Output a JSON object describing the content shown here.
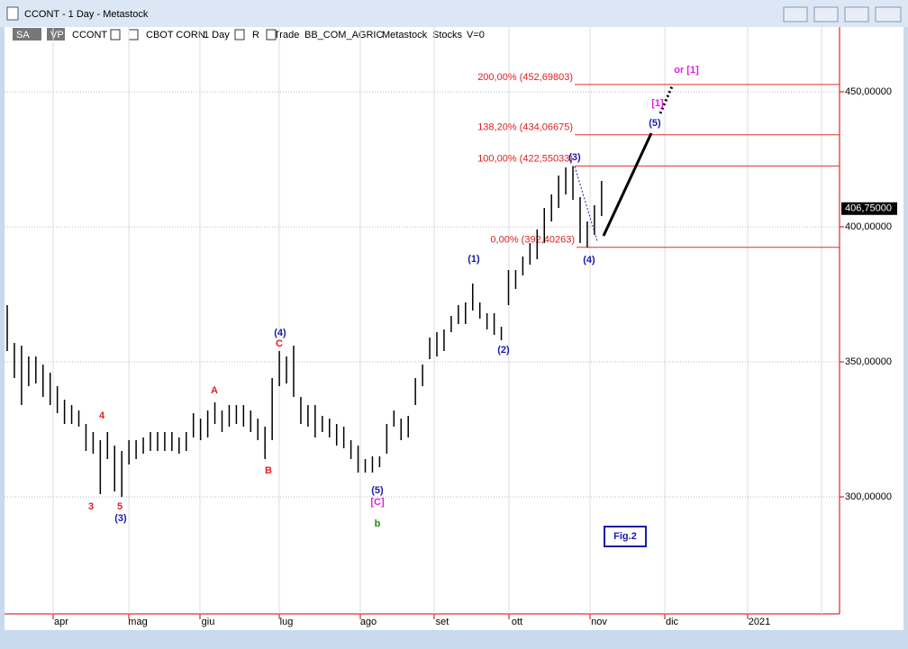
{
  "window": {
    "title": "CCONT - 1 Day - Metastock"
  },
  "toolbar": [
    "SA",
    "VP",
    "CCONT",
    "CBOT CORN",
    "1 Day",
    "R",
    "Trade",
    "BB_COM_AGRIC",
    "Metastock",
    "Stocks",
    "V=0"
  ],
  "chart_data": {
    "type": "hilo",
    "highs": [
      371,
      357,
      356,
      352,
      352,
      349,
      346,
      341,
      336,
      334,
      332,
      327,
      324,
      321,
      324,
      319,
      317,
      321,
      321,
      322,
      324,
      324,
      324,
      324,
      322,
      324,
      331,
      329,
      332,
      335,
      332,
      334,
      334,
      334,
      332,
      329,
      326,
      344,
      354,
      352,
      356,
      337,
      334,
      334,
      330,
      329,
      327,
      326,
      321,
      319,
      314,
      315,
      315,
      327,
      332,
      329,
      330,
      344,
      349,
      359,
      361,
      362,
      367,
      371,
      372,
      379,
      372,
      368,
      368,
      363,
      384,
      384,
      389,
      394,
      399,
      407,
      412,
      419,
      422,
      422.55,
      411,
      402,
      408,
      417
    ],
    "lows": [
      354,
      344,
      334,
      341,
      342,
      337,
      334,
      331,
      327,
      327,
      326,
      317,
      316,
      301,
      314,
      302,
      300,
      312,
      314,
      316,
      317,
      317,
      317,
      317,
      316,
      317,
      322,
      321,
      322,
      327,
      324,
      326,
      327,
      326,
      324,
      321,
      314,
      321,
      341,
      342,
      337,
      327,
      326,
      322,
      324,
      322,
      319,
      318,
      314,
      309,
      309,
      309,
      311,
      316,
      326,
      321,
      322,
      334,
      341,
      351,
      352,
      354,
      361,
      364,
      364,
      369,
      366,
      362,
      360,
      358,
      371,
      377,
      382,
      386,
      388,
      394,
      402,
      407,
      412,
      410,
      394,
      392.4,
      397,
      404
    ],
    "color": "#000000",
    "ylim": [
      256.67,
      474
    ],
    "yticks": [
      {
        "value": 300,
        "label": "300,00000"
      },
      {
        "value": 350,
        "label": "350,00000"
      },
      {
        "value": 400,
        "label": "400,00000"
      },
      {
        "value": 450,
        "label": "450,00000"
      }
    ],
    "categories": [
      "apr",
      "mag",
      "giu",
      "lug",
      "ago",
      "set",
      "ott",
      "nov",
      "dic",
      "2021"
    ],
    "last_price": {
      "value": 406.75,
      "label": "406,75000"
    },
    "fib_levels": [
      {
        "label": "200,00% (452,69803)",
        "value": 452.69803
      },
      {
        "label": "138,20% (434,06675)",
        "value": 434.06675
      },
      {
        "label": "100,00% (422,55033)",
        "value": 422.55033
      },
      {
        "label": "0,00% (392,40263)",
        "value": 392.40263
      }
    ],
    "annotations": [
      {
        "text": "(1)",
        "color": "#1a1aa8"
      },
      {
        "text": "(2)",
        "color": "#1a1aa8"
      },
      {
        "text": "(3)",
        "color": "#1a1aa8"
      },
      {
        "text": "(4)",
        "color": "#1a1aa8"
      },
      {
        "text": "(5)",
        "color": "#1a1aa8"
      },
      {
        "text": "(3)",
        "color": "#1a1aa8"
      },
      {
        "text": "(4)",
        "color": "#1a1aa8"
      },
      {
        "text": "(5)",
        "color": "#1a1aa8"
      },
      {
        "text": "3",
        "color": "#e02020"
      },
      {
        "text": "4",
        "color": "#e02020"
      },
      {
        "text": "5",
        "color": "#e02020"
      },
      {
        "text": "A",
        "color": "#e02020"
      },
      {
        "text": "B",
        "color": "#e02020"
      },
      {
        "text": "C",
        "color": "#e02020"
      },
      {
        "text": "[C]",
        "color": "#e020e0"
      },
      {
        "text": "b",
        "color": "#1a8a1a"
      },
      {
        "text": "[1]",
        "color": "#e020e0"
      },
      {
        "text": "or [1]",
        "color": "#e020e0"
      },
      {
        "text": "Fig.2",
        "color": "#1a1aa8"
      }
    ]
  }
}
